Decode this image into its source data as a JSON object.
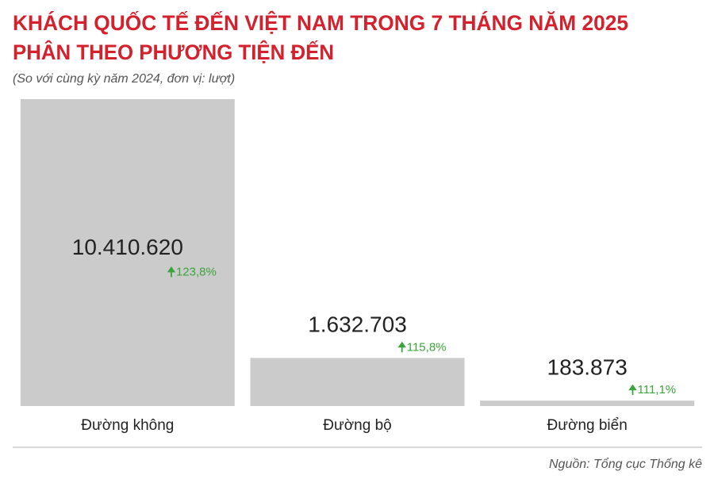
{
  "chart_data": {
    "type": "bar",
    "title": "KHÁCH QUỐC TẾ ĐẾN VIỆT NAM TRONG 7 THÁNG NĂM 2025",
    "title_line2": "PHÂN THEO PHƯƠNG TIỆN ĐẾN",
    "subtitle": "(So với cùng kỳ năm 2024, đơn vị: lượt)",
    "categories": [
      "Đường không",
      "Đường bộ",
      "Đường biển"
    ],
    "values": [
      10410620,
      1632703,
      183873
    ],
    "value_labels": [
      "10.410.620",
      "1.632.703",
      "183.873"
    ],
    "changes": [
      "123,8%",
      "115,8%",
      "111,1%"
    ],
    "color": "#cccbcb",
    "ylim": [
      0,
      10410620
    ],
    "source": "Nguồn: Tổng cục Thống kê"
  }
}
